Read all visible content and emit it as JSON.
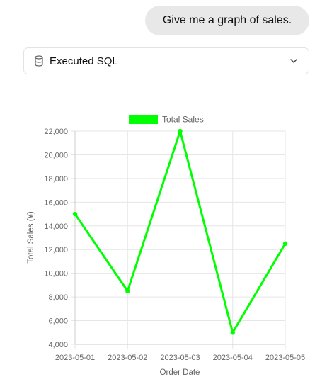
{
  "message": {
    "text": "Give me a graph of sales."
  },
  "sql_panel": {
    "label": "Executed SQL",
    "icon": "database-icon",
    "toggle_icon": "chevron-down-icon"
  },
  "colors": {
    "series": "#00ff00",
    "grid": "#e6e6e6",
    "text": "#666666"
  },
  "chart_data": {
    "type": "line",
    "x": [
      "2023-05-01",
      "2023-05-02",
      "2023-05-03",
      "2023-05-04",
      "2023-05-05"
    ],
    "series": [
      {
        "name": "Total Sales",
        "values": [
          15000,
          8500,
          22000,
          5000,
          12500
        ]
      }
    ],
    "xlabel": "Order Date",
    "ylabel": "Total Sales (¥)",
    "ylim": [
      4000,
      22000
    ],
    "yticks": [
      "4,000",
      "6,000",
      "8,000",
      "10,000",
      "12,000",
      "14,000",
      "16,000",
      "18,000",
      "20,000",
      "22,000"
    ],
    "grid": true,
    "legend": "top-center"
  }
}
